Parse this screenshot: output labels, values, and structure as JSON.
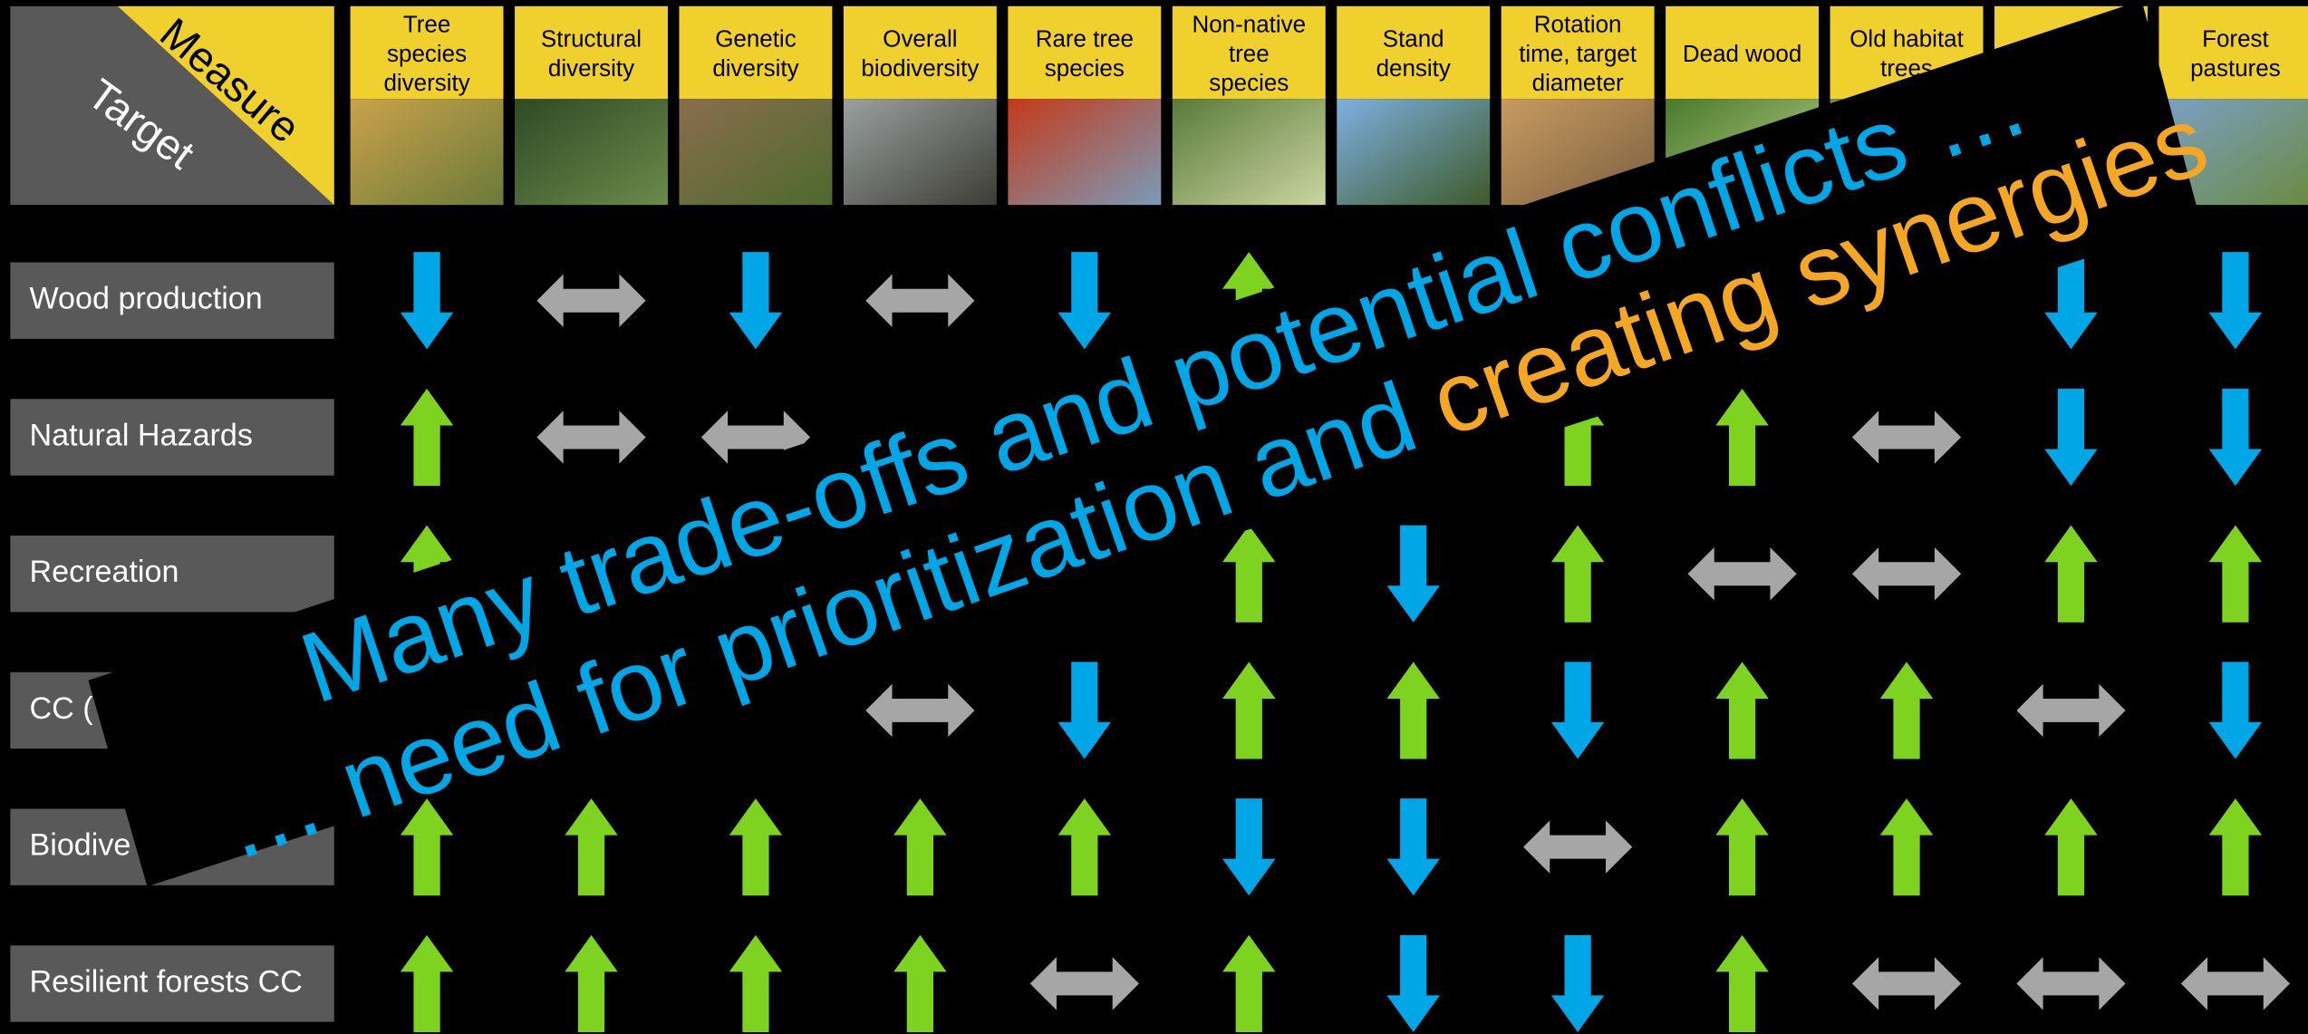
{
  "corner": {
    "measure": "Measure",
    "target": "Target"
  },
  "measures": [
    [
      "Tree",
      "species",
      "diversity"
    ],
    [
      "Structural",
      "diversity"
    ],
    [
      "Genetic",
      "diversity"
    ],
    [
      "Overall",
      "biodiversity"
    ],
    [
      "Rare tree",
      "species"
    ],
    [
      "Non-native",
      "tree",
      "species"
    ],
    [
      "Stand",
      "density"
    ],
    [
      "Rotation",
      "time, target",
      "diameter"
    ],
    [
      "Dead wood"
    ],
    [
      "Old habitat",
      "trees"
    ],
    null,
    [
      "Forest",
      "pastures"
    ]
  ],
  "targets": [
    "Wood production",
    "Natural Hazards",
    "Recreation",
    "CC (",
    "Biodive",
    "Resilient forests CC"
  ],
  "effects": [
    [
      "down",
      "both",
      "down",
      "both",
      "down",
      "up",
      null,
      null,
      null,
      null,
      "down",
      "down"
    ],
    [
      "up",
      "both",
      "both",
      null,
      null,
      null,
      null,
      "up",
      "up",
      "both",
      "down",
      "down"
    ],
    [
      "up",
      null,
      null,
      null,
      null,
      "up",
      "down",
      "up",
      "both",
      "both",
      "up",
      "up"
    ],
    [
      null,
      null,
      null,
      "both",
      "down",
      "up",
      "up",
      "down",
      "up",
      "up",
      "both",
      "down"
    ],
    [
      "up",
      "up",
      "up",
      "up",
      "up",
      "down",
      "down",
      "both",
      "up",
      "up",
      "up",
      "up"
    ],
    [
      "up",
      "up",
      "up",
      "up",
      "both",
      "up",
      "down",
      "down",
      "up",
      "both",
      "both",
      "both"
    ]
  ],
  "banner": {
    "line1": "Many trade-offs and potential conflicts …",
    "line2": "… need for prioritization and",
    "highlight": "creating synergies"
  }
}
